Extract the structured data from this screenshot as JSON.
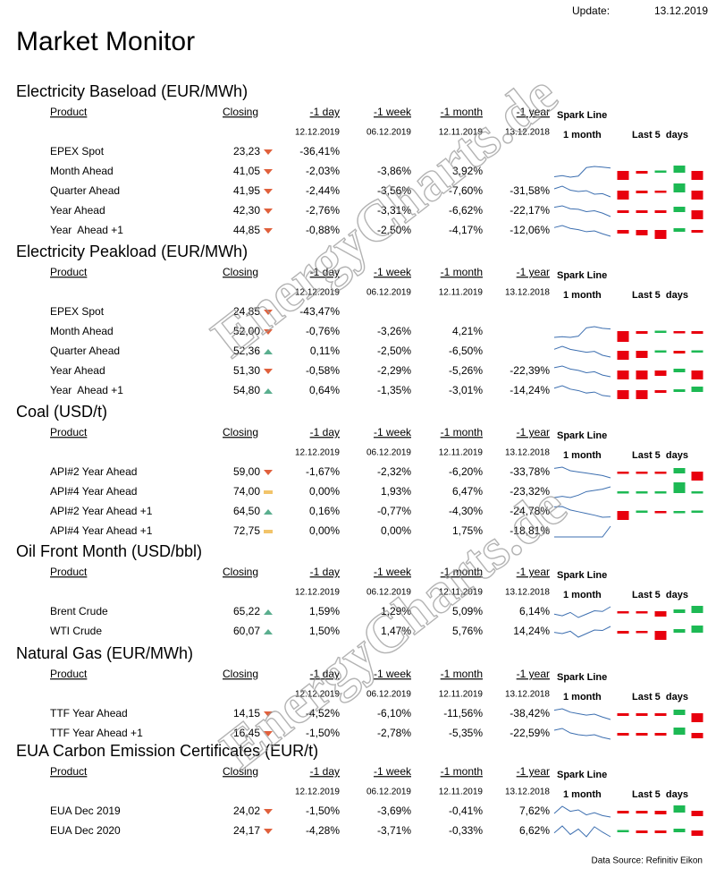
{
  "header": {
    "update_label": "Update:",
    "update_date": "13.12.2019",
    "title": "Market Monitor"
  },
  "columns": {
    "product": "Product",
    "closing": "Closing",
    "changes": [
      "-1 day",
      "-1 week",
      "-1 month",
      "-1 year"
    ],
    "dates": [
      "12.12.2019",
      "06.12.2019",
      "12.11.2019",
      "13.12.2018"
    ],
    "spark": "Spark Line",
    "spark_sub": "1 month",
    "last5": "Last 5  days"
  },
  "sections": [
    {
      "title": "Electricity Baseload (EUR/MWh)",
      "rows": [
        {
          "product": "EPEX Spot",
          "closing": "23,23",
          "trend": "down",
          "changes": [
            "-36,41%",
            null,
            null,
            null
          ],
          "spark": null,
          "last5": null
        },
        {
          "product": "Month Ahead",
          "closing": "41,05",
          "trend": "down",
          "changes": [
            "-2,03%",
            "-3,86%",
            "3,92%",
            null
          ],
          "spark": [
            40,
            40.5,
            39.8,
            40.3,
            44,
            44.5,
            44.2,
            43.8
          ],
          "last5": [
            -1,
            -0.3,
            0.2,
            0.8,
            -1
          ]
        },
        {
          "product": "Quarter Ahead",
          "closing": "41,95",
          "trend": "down",
          "changes": [
            "-2,44%",
            "-3,56%",
            "-7,60%",
            "-31,58%"
          ],
          "spark": [
            45,
            46,
            44.5,
            44,
            44.3,
            43,
            43.2,
            42
          ],
          "last5": [
            -1,
            -0.3,
            -0.2,
            1,
            -1
          ]
        },
        {
          "product": "Year Ahead",
          "closing": "42,30",
          "trend": "down",
          "changes": [
            "-2,76%",
            "-3,31%",
            "-6,62%",
            "-22,17%"
          ],
          "spark": [
            45.5,
            46,
            45,
            44.8,
            44,
            44.3,
            43.5,
            42.3
          ],
          "last5": [
            -0.3,
            -0.3,
            -0.3,
            0.6,
            -1
          ]
        },
        {
          "product": "Year  Ahead +1",
          "closing": "44,85",
          "trend": "down",
          "changes": [
            "-0,88%",
            "-2,50%",
            "-4,17%",
            "-12,06%"
          ],
          "spark": [
            47,
            47.5,
            46.8,
            46.5,
            46,
            46.2,
            45.5,
            44.9
          ],
          "last5": [
            -0.4,
            -0.6,
            -1,
            0.4,
            -0.3
          ]
        }
      ]
    },
    {
      "title": "Electricity Peakload (EUR/MWh)",
      "rows": [
        {
          "product": "EPEX Spot",
          "closing": "24,85",
          "trend": "down",
          "changes": [
            "-43,47%",
            null,
            null,
            null
          ],
          "spark": null,
          "last5": null
        },
        {
          "product": "Month Ahead",
          "closing": "52,00",
          "trend": "down",
          "changes": [
            "-0,76%",
            "-3,26%",
            "4,21%",
            null
          ],
          "spark": [
            49,
            49.3,
            49,
            49.5,
            53,
            53.5,
            52.8,
            52.5
          ],
          "last5": [
            -1.2,
            -0.3,
            0.2,
            -0.2,
            -0.3
          ]
        },
        {
          "product": "Quarter Ahead",
          "closing": "52,36",
          "trend": "up",
          "changes": [
            "0,11%",
            "-2,50%",
            "-6,50%",
            null
          ],
          "spark": [
            55,
            56,
            55,
            54.5,
            54,
            54.3,
            53,
            52.4
          ],
          "last5": [
            -1,
            -0.8,
            0.2,
            -0.3,
            0.2
          ]
        },
        {
          "product": "Year Ahead",
          "closing": "51,30",
          "trend": "down",
          "changes": [
            "-0,58%",
            "-2,29%",
            "-5,26%",
            "-22,39%"
          ],
          "spark": [
            54,
            54.5,
            53.6,
            53.2,
            52.5,
            52.8,
            51.8,
            51.3
          ],
          "last5": [
            -1,
            -1,
            -0.6,
            0.4,
            -1
          ]
        },
        {
          "product": "Year  Ahead +1",
          "closing": "54,80",
          "trend": "up",
          "changes": [
            "0,64%",
            "-1,35%",
            "-3,01%",
            "-14,24%"
          ],
          "spark": [
            56.5,
            57,
            56.3,
            56,
            55.5,
            55.7,
            55,
            54.8
          ],
          "last5": [
            -1,
            -1,
            -0.3,
            0.3,
            0.6
          ]
        }
      ]
    },
    {
      "title": "Coal (USD/t)",
      "rows": [
        {
          "product": "API#2 Year Ahead",
          "closing": "59,00",
          "trend": "down",
          "changes": [
            "-1,67%",
            "-2,32%",
            "-6,20%",
            "-33,78%"
          ],
          "spark": [
            63,
            63.5,
            62,
            61.5,
            61,
            60.5,
            60,
            59
          ],
          "last5": [
            -0.2,
            -0.2,
            -0.2,
            0.6,
            -1
          ]
        },
        {
          "product": "API#4 Year Ahead",
          "closing": "74,00",
          "trend": "flat",
          "changes": [
            "0,00%",
            "1,93%",
            "6,47%",
            "-23,32%"
          ],
          "spark": [
            69.5,
            70,
            69.5,
            70.5,
            72,
            72.5,
            73,
            74
          ],
          "last5": [
            0,
            0,
            0,
            1.2,
            0
          ]
        },
        {
          "product": "API#2 Year Ahead +1",
          "closing": "64,50",
          "trend": "up",
          "changes": [
            "0,16%",
            "-0,77%",
            "-4,30%",
            "-24,78%"
          ],
          "spark": [
            67.4,
            67.5,
            66.5,
            66,
            65.5,
            65,
            64.4,
            64.5
          ],
          "last5": [
            -1,
            0.2,
            -0.2,
            0,
            0.2
          ]
        },
        {
          "product": "API#4 Year Ahead +1",
          "closing": "72,75",
          "trend": "flat",
          "changes": [
            "0,00%",
            "0,00%",
            "1,75%",
            "-18,81%"
          ],
          "spark": [
            72.7,
            72.7,
            72.7,
            72.7,
            72.7,
            72.7,
            72.7,
            72.75
          ],
          "last5": null
        }
      ]
    },
    {
      "title": "Oil Front Month (USD/bbl)",
      "rows": [
        {
          "product": "Brent Crude",
          "closing": "65,22",
          "trend": "up",
          "changes": [
            "1,59%",
            "1,29%",
            "5,09%",
            "6,14%"
          ],
          "spark": [
            63,
            62.5,
            63.5,
            62,
            63,
            64,
            63.8,
            65.2
          ],
          "last5": [
            -0.2,
            -0.2,
            -0.6,
            0.4,
            0.8
          ]
        },
        {
          "product": "WTI Crude",
          "closing": "60,07",
          "trend": "up",
          "changes": [
            "1,50%",
            "1,47%",
            "5,76%",
            "14,24%"
          ],
          "spark": [
            57.5,
            57,
            58,
            55.5,
            57,
            58.5,
            58.3,
            60
          ],
          "last5": [
            -0.3,
            -0.2,
            -1,
            0.4,
            0.8
          ]
        }
      ]
    },
    {
      "title": "Natural Gas (EUR/MWh)",
      "rows": [
        {
          "product": "TTF Year Ahead",
          "closing": "14,15",
          "trend": "down",
          "changes": [
            "-4,52%",
            "-6,10%",
            "-11,56%",
            "-38,42%"
          ],
          "spark": [
            16,
            16.3,
            15.6,
            15.3,
            15,
            15.2,
            14.6,
            14.1
          ],
          "last5": [
            -0.3,
            -0.3,
            -0.3,
            0.6,
            -1
          ]
        },
        {
          "product": "TTF Year Ahead +1",
          "closing": "16,45",
          "trend": "down",
          "changes": [
            "-1,50%",
            "-2,78%",
            "-5,35%",
            "-22,59%"
          ],
          "spark": [
            17.4,
            17.6,
            17.1,
            16.9,
            16.8,
            16.9,
            16.6,
            16.4
          ],
          "last5": [
            -0.3,
            -0.3,
            -0.3,
            0.8,
            -0.6
          ]
        }
      ]
    },
    {
      "title": "EUA Carbon Emission Certificates (EUR/t)",
      "rows": [
        {
          "product": "EUA Dec 2019",
          "closing": "24,02",
          "trend": "down",
          "changes": [
            "-1,50%",
            "-3,69%",
            "-0,41%",
            "7,62%"
          ],
          "spark": [
            24.5,
            25.5,
            24.8,
            25,
            24.3,
            24.6,
            24.2,
            24
          ],
          "last5": [
            -0.3,
            -0.3,
            -0.4,
            0.8,
            -0.6
          ]
        },
        {
          "product": "EUA Dec 2020",
          "closing": "24,17",
          "trend": "down",
          "changes": [
            "-4,28%",
            "-3,71%",
            "-0,33%",
            "6,62%"
          ],
          "spark": [
            24.7,
            25.6,
            24.5,
            25.2,
            24.2,
            25.5,
            24.8,
            24.2
          ],
          "last5": [
            0.2,
            -0.3,
            -0.3,
            0.4,
            -0.6
          ]
        }
      ]
    }
  ],
  "watermark": "EnergyCharts.de",
  "footer": "Data Source: Refinitiv Eikon"
}
